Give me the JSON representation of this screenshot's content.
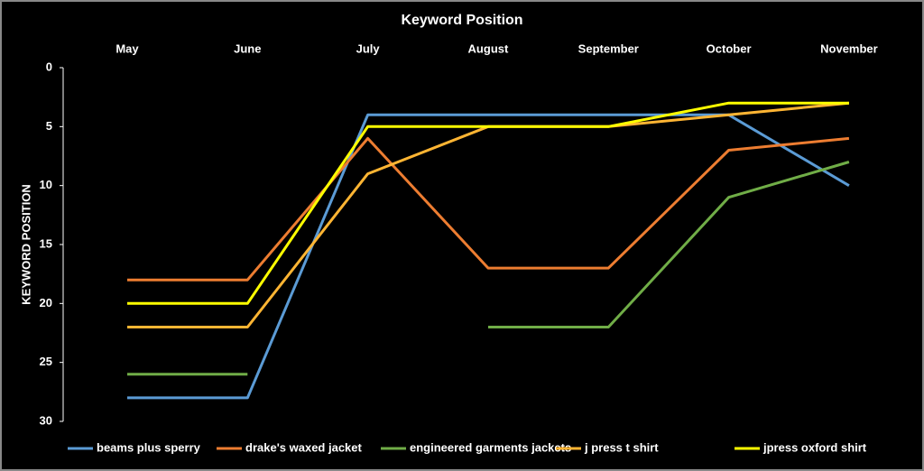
{
  "chart_data": {
    "type": "line",
    "title": "Keyword Position",
    "y_label": "KEYWORD POSITION",
    "categories": [
      "May",
      "June",
      "July",
      "August",
      "September",
      "October",
      "November"
    ],
    "series": [
      {
        "name": "beams plus sperry",
        "color": "#5b9bd5",
        "values": [
          28,
          28,
          4,
          4,
          4,
          4,
          10
        ]
      },
      {
        "name": "drake's waxed jacket",
        "color": "#ed7d31",
        "values": [
          18,
          18,
          6,
          17,
          17,
          7,
          6
        ]
      },
      {
        "name": "engineered garments jackets",
        "color": "#70ad47",
        "values": [
          26,
          26,
          null,
          22,
          22,
          11,
          8
        ]
      },
      {
        "name": "j press t shirt",
        "color": "#ffb533",
        "values": [
          22,
          22,
          9,
          5,
          5,
          4,
          3
        ]
      },
      {
        "name": "jpress oxford shirt",
        "color": "#ffff00",
        "values": [
          20,
          20,
          5,
          5,
          5,
          3,
          3
        ]
      }
    ],
    "ylim": [
      30,
      0
    ],
    "yticks": [
      0,
      5,
      10,
      15,
      20,
      25,
      30
    ],
    "grid": false,
    "legend": "bottom"
  }
}
